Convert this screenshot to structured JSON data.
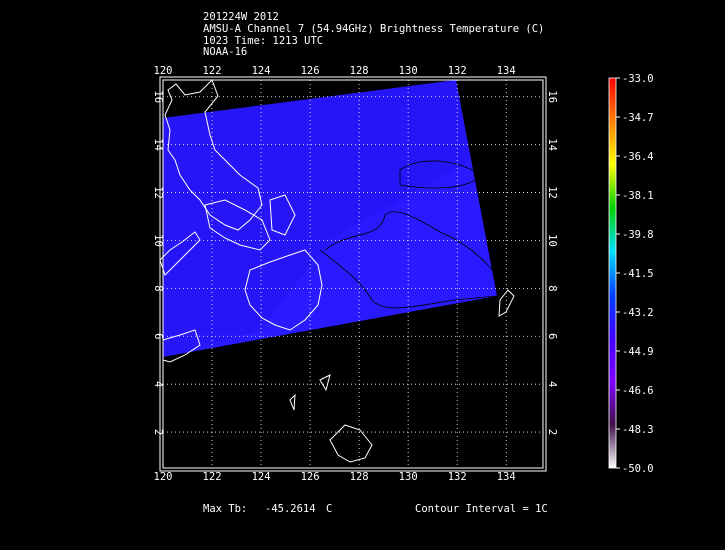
{
  "header": {
    "line1": "201224W 2012",
    "line2": "AMSU-A Channel 7 (54.94GHz) Brightness Temperature (C)",
    "line3": "1023 Time: 1213 UTC",
    "line4": "NOAA-16"
  },
  "map": {
    "lon_range": [
      120,
      135.5
    ],
    "lat_range": [
      0.5,
      16.7
    ],
    "lon_ticks": [
      "120",
      "122",
      "124",
      "126",
      "128",
      "130",
      "132",
      "134"
    ],
    "lat_ticks": [
      "2",
      "4",
      "6",
      "8",
      "10",
      "12",
      "14",
      "16"
    ],
    "gridlines": true,
    "swath_color": "#2a1aff",
    "coastline_color": "#ffffff",
    "contour_color": "#000000"
  },
  "colorbar": {
    "labels": [
      "-33.0",
      "-34.7",
      "-36.4",
      "-38.1",
      "-39.8",
      "-41.5",
      "-43.2",
      "-44.9",
      "-46.6",
      "-48.3",
      "-50.0"
    ],
    "colors": [
      "#ff0000",
      "#ff8000",
      "#ffff00",
      "#00d000",
      "#00e0ff",
      "#0040ff",
      "#4000ff",
      "#8000ff",
      "#40104a",
      "#ffffff"
    ]
  },
  "footer": {
    "max_tb_label": "Max Tb:",
    "max_tb_value": "-45.2614",
    "max_tb_unit": "C",
    "contour_interval": "Contour Interval = 1C"
  }
}
